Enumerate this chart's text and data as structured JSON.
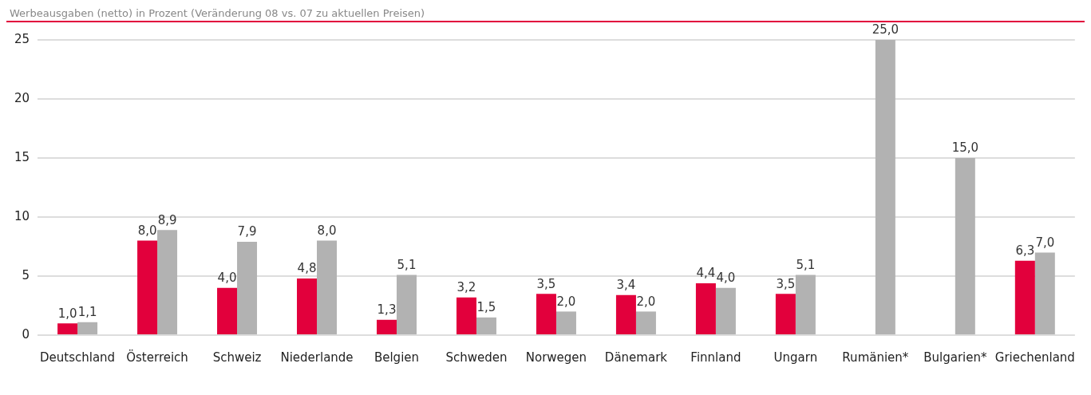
{
  "chart_data": {
    "type": "bar",
    "title": "Werbeausgaben (netto) in Prozent (Veränderung 08 vs. 07 zu aktuellen Preisen)",
    "categories": [
      "Deutschland",
      "Österreich",
      "Schweiz",
      "Niederlande",
      "Belgien",
      "Schweden",
      "Norwegen",
      "Dänemark",
      "Finnland",
      "Ungarn",
      "Rumänien*",
      "Bulgarien*",
      "Griechenland"
    ],
    "series": [
      {
        "color": "#e2003c",
        "values": [
          1.0,
          8.0,
          4.0,
          4.8,
          1.3,
          3.2,
          3.5,
          3.4,
          4.4,
          3.5,
          null,
          null,
          6.3
        ],
        "value_labels": [
          "1,0",
          "8,0",
          "4,0",
          "4,8",
          "1,3",
          "3,2",
          "3,5",
          "3,4",
          "4,4",
          "3,5",
          null,
          null,
          "6,3"
        ]
      },
      {
        "color": "#b2b2b2",
        "values": [
          1.1,
          8.9,
          7.9,
          8.0,
          5.1,
          1.5,
          2.0,
          2.0,
          4.0,
          5.1,
          25.0,
          15.0,
          7.0
        ],
        "value_labels": [
          "1,1",
          "8,9",
          "7,9",
          "8,0",
          "5,1",
          "1,5",
          "2,0",
          "2,0",
          "4,0",
          "5,1",
          "25,0",
          "15,0",
          "7,0"
        ]
      }
    ],
    "ylim": [
      0,
      25
    ],
    "yticks": [
      0,
      5,
      10,
      15,
      20,
      25
    ],
    "grid": "y",
    "legend": false
  }
}
